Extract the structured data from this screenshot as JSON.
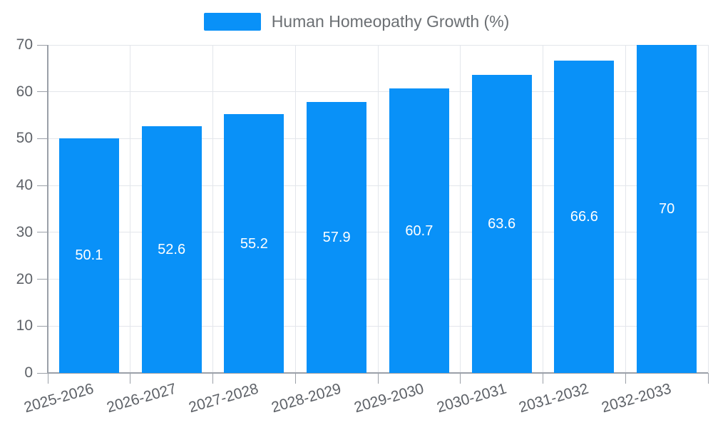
{
  "legend": {
    "label": "Human Homeopathy Growth (%)"
  },
  "chart_data": {
    "type": "bar",
    "title": "",
    "categories": [
      "2025-2026",
      "2026-2027",
      "2027-2028",
      "2028-2029",
      "2029-2030",
      "2030-2031",
      "2031-2032",
      "2032-2033"
    ],
    "series": [
      {
        "name": "Human Homeopathy Growth (%)",
        "values": [
          50.1,
          52.6,
          55.2,
          57.9,
          60.7,
          63.6,
          66.6,
          70
        ]
      }
    ],
    "value_labels": [
      "50.1",
      "52.6",
      "55.2",
      "57.9",
      "60.7",
      "63.6",
      "66.6",
      "70"
    ],
    "y_ticks": [
      "0",
      "10",
      "20",
      "30",
      "40",
      "50",
      "60",
      "70"
    ],
    "xlabel": "",
    "ylabel": "",
    "ylim": [
      0,
      70
    ],
    "ytick_interval": 10,
    "grid": true,
    "legend_position": "top-center",
    "colors": {
      "bar": "#0991f8",
      "grid": "#e3e6eb",
      "axis": "#9ba0a8",
      "tick_text": "#5e6268",
      "value_text": "#ffffff"
    }
  }
}
